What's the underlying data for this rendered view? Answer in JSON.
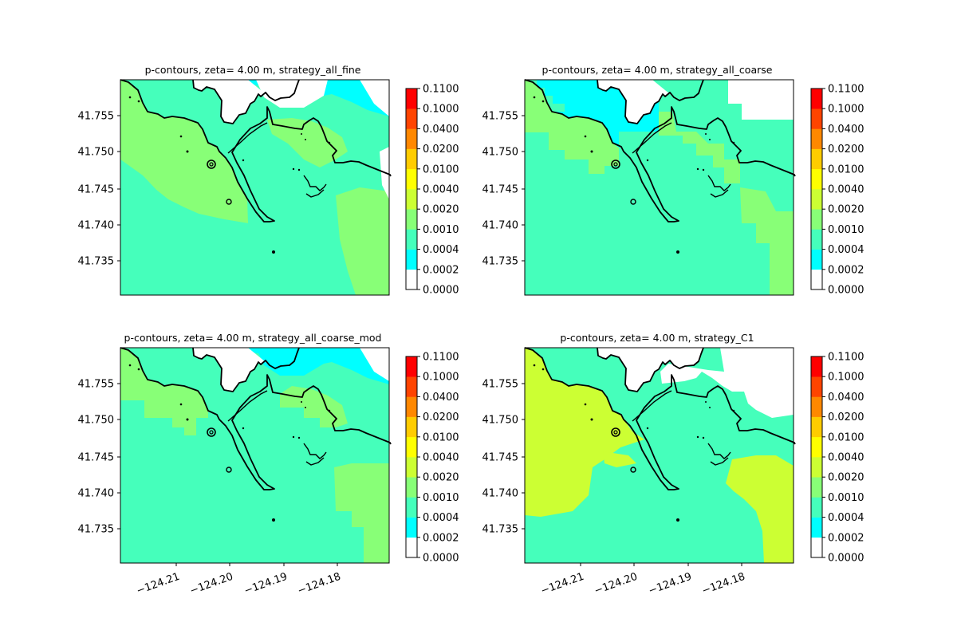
{
  "figure": {
    "colorbar_levels": [
      "0.0000",
      "0.0002",
      "0.0004",
      "0.0010",
      "0.0020",
      "0.0040",
      "0.0100",
      "0.0200",
      "0.0400",
      "0.1000",
      "0.1100"
    ],
    "colorbar_colors": [
      "#ffffff",
      "#00ffff",
      "#45ffbb",
      "#88ff77",
      "#ccff33",
      "#ffff00",
      "#ffcc00",
      "#ff8800",
      "#ff4400",
      "#ff0000"
    ],
    "coast_color": "#000000"
  },
  "chart_data": [
    {
      "type": "heatmap",
      "title": "p-contours, zeta= 4.00 m, strategy_all_fine",
      "yticks": [
        "41.755",
        "41.750",
        "41.745",
        "41.740",
        "41.735"
      ],
      "xticks": [],
      "dominant_levels": [
        "0.0004-0.0010",
        "0.0010-0.0020",
        "0.0002-0.0004",
        "0.0000-0.0002"
      ]
    },
    {
      "type": "heatmap",
      "title": "p-contours, zeta= 4.00 m, strategy_all_coarse",
      "yticks": [
        "41.755",
        "41.750",
        "41.745",
        "41.740",
        "41.735"
      ],
      "xticks": [],
      "dominant_levels": [
        "0.0004-0.0010",
        "0.0010-0.0020",
        "0.0002-0.0004",
        "0.0000-0.0002"
      ]
    },
    {
      "type": "heatmap",
      "title": "p-contours, zeta= 4.00 m, strategy_all_coarse_mod",
      "yticks": [
        "41.755",
        "41.750",
        "41.745",
        "41.740",
        "41.735"
      ],
      "xticks": [
        "−124.21",
        "−124.20",
        "−124.19",
        "−124.18"
      ],
      "dominant_levels": [
        "0.0004-0.0010",
        "0.0010-0.0020",
        "0.0002-0.0004",
        "0.0000-0.0002"
      ]
    },
    {
      "type": "heatmap",
      "title": "p-contours, zeta= 4.00 m, strategy_C1",
      "yticks": [
        "41.755",
        "41.750",
        "41.745",
        "41.740",
        "41.735"
      ],
      "xticks": [
        "−124.21",
        "−124.20",
        "−124.19",
        "−124.18"
      ],
      "dominant_levels": [
        "0.0004-0.0010",
        "0.0020-0.0040",
        "0.0000-0.0002"
      ]
    }
  ]
}
